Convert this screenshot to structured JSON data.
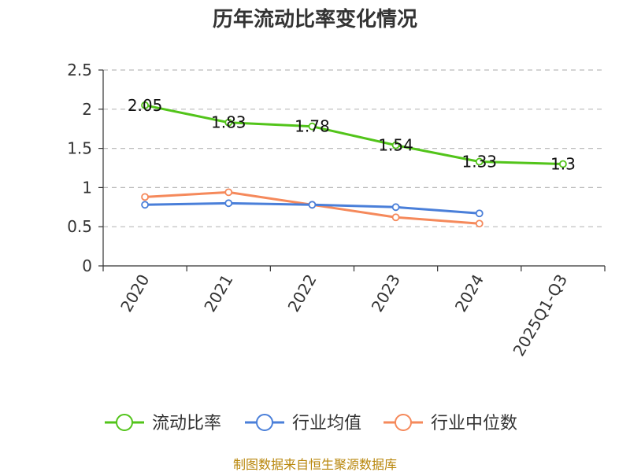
{
  "title": "历年流动比率变化情况",
  "footer": "制图数据来自恒生聚源数据库",
  "chart_data": {
    "type": "line",
    "title": "历年流动比率变化情况",
    "categories": [
      "2020",
      "2021",
      "2022",
      "2023",
      "2024",
      "2025Q1-Q3"
    ],
    "ylim": [
      0,
      2.5
    ],
    "yticks": [
      0,
      0.5,
      1,
      1.5,
      2,
      2.5
    ],
    "ytick_labels": [
      "0",
      "0.5",
      "1",
      "1.5",
      "2",
      "2.5"
    ],
    "grid": true,
    "legend_position": "bottom",
    "series": [
      {
        "name": "流动比率",
        "color": "#52c41a",
        "values": [
          2.05,
          1.83,
          1.78,
          1.54,
          1.33,
          1.3
        ],
        "labels": [
          "2.05",
          "1.83",
          "1.78",
          "1.54",
          "1.33",
          "1.3"
        ]
      },
      {
        "name": "行业均值",
        "color": "#4a7fd9",
        "values": [
          0.78,
          0.8,
          0.78,
          0.75,
          0.67,
          null
        ],
        "labels": []
      },
      {
        "name": "行业中位数",
        "color": "#f5895b",
        "values": [
          0.88,
          0.94,
          0.78,
          0.62,
          0.54,
          null
        ],
        "labels": []
      }
    ]
  }
}
